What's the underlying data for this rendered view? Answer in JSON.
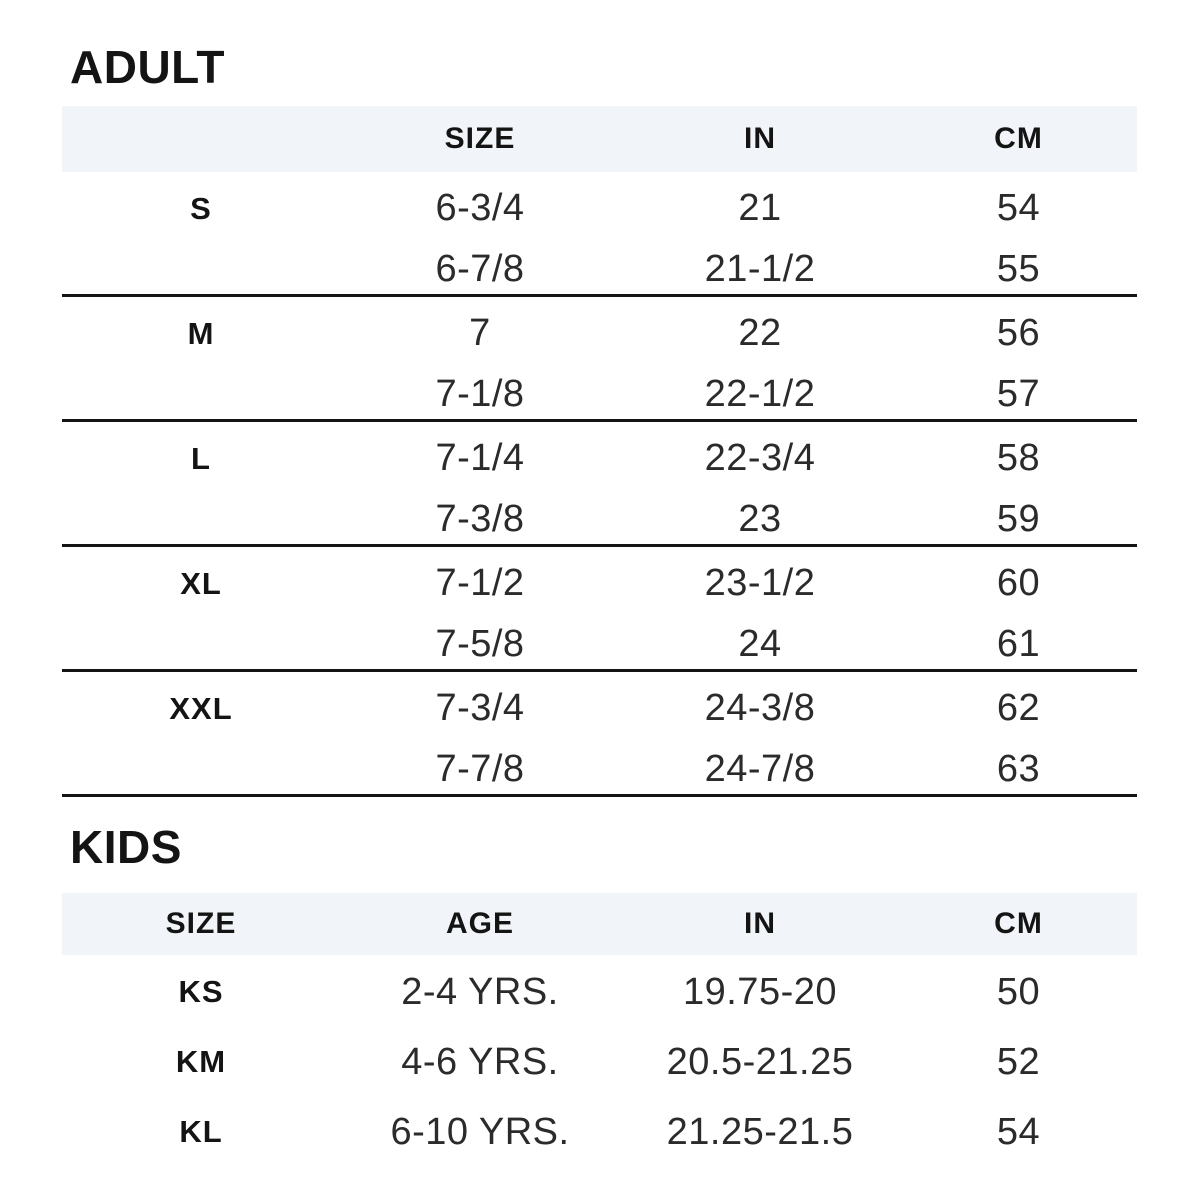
{
  "adult": {
    "title": "ADULT",
    "columns": [
      "",
      "SIZE",
      "IN",
      "CM"
    ],
    "groups": [
      {
        "label": "S",
        "rows": [
          [
            "6-3/4",
            "21",
            "54"
          ],
          [
            "6-7/8",
            "21-1/2",
            "55"
          ]
        ]
      },
      {
        "label": "M",
        "rows": [
          [
            "7",
            "22",
            "56"
          ],
          [
            "7-1/8",
            "22-1/2",
            "57"
          ]
        ]
      },
      {
        "label": "L",
        "rows": [
          [
            "7-1/4",
            "22-3/4",
            "58"
          ],
          [
            "7-3/8",
            "23",
            "59"
          ]
        ]
      },
      {
        "label": "XL",
        "rows": [
          [
            "7-1/2",
            "23-1/2",
            "60"
          ],
          [
            "7-5/8",
            "24",
            "61"
          ]
        ]
      },
      {
        "label": "XXL",
        "rows": [
          [
            "7-3/4",
            "24-3/8",
            "62"
          ],
          [
            "7-7/8",
            "24-7/8",
            "63"
          ]
        ]
      }
    ]
  },
  "kids": {
    "title": "KIDS",
    "columns": [
      "SIZE",
      "AGE",
      "IN",
      "CM"
    ],
    "rows": [
      [
        "KS",
        "2-4 YRS.",
        "19.75-20",
        "50"
      ],
      [
        "KM",
        "4-6 YRS.",
        "20.5-21.25",
        "52"
      ],
      [
        "KL",
        "6-10 YRS.",
        "21.25-21.5",
        "54"
      ]
    ]
  },
  "colors": {
    "header_band": "#f1f4f8",
    "divider": "#141414",
    "heading_text": "#141414",
    "data_text": "#2b2b2b"
  }
}
